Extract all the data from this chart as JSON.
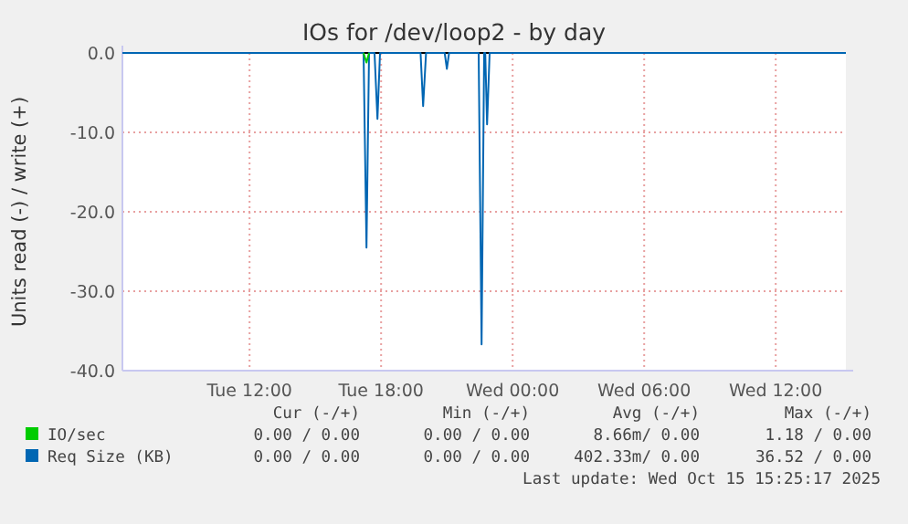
{
  "chart_data": {
    "type": "line",
    "title": "IOs for /dev/loop2 - by day",
    "ylabel": "Units read (-) / write (+)",
    "x": [
      "2025-10-14T06:12",
      "2025-10-14T17:12",
      "2025-10-14T17:20",
      "2025-10-14T17:27",
      "2025-10-14T17:42",
      "2025-10-14T17:50",
      "2025-10-14T17:57",
      "2025-10-14T19:48",
      "2025-10-14T19:55",
      "2025-10-14T20:03",
      "2025-10-14T20:54",
      "2025-10-14T21:00",
      "2025-10-14T21:06",
      "2025-10-14T22:27",
      "2025-10-14T22:35",
      "2025-10-14T22:42",
      "2025-10-14T22:45",
      "2025-10-14T22:50",
      "2025-10-14T22:57",
      "2025-10-15T15:12"
    ],
    "series": [
      {
        "name": "IO/sec",
        "color": "#00cc00",
        "values": [
          null,
          0,
          -1.2,
          0,
          null,
          null,
          null,
          null,
          null,
          null,
          null,
          null,
          null,
          null,
          null,
          null,
          null,
          null,
          null,
          null
        ]
      },
      {
        "name": "Req Size (KB)",
        "color": "#0066b3",
        "values": [
          0,
          0,
          -24.5,
          0,
          0,
          -8.3,
          0,
          0,
          -6.7,
          0,
          0,
          -2,
          0,
          0,
          -36.7,
          0,
          0,
          -9,
          0,
          0
        ]
      }
    ],
    "xlim": [
      "2025-10-14T06:12",
      "2025-10-15T15:12"
    ],
    "xticks": [
      {
        "value": "2025-10-14T12:00",
        "label": "Tue 12:00"
      },
      {
        "value": "2025-10-14T18:00",
        "label": "Tue 18:00"
      },
      {
        "value": "2025-10-15T00:00",
        "label": "Wed 00:00"
      },
      {
        "value": "2025-10-15T06:00",
        "label": "Wed 06:00"
      },
      {
        "value": "2025-10-15T12:00",
        "label": "Wed 12:00"
      }
    ],
    "ylim": [
      -40,
      0
    ],
    "yticks": [
      {
        "value": 0,
        "label": "0.0"
      },
      {
        "value": -10,
        "label": "-10.0"
      },
      {
        "value": -20,
        "label": "-20.0"
      },
      {
        "value": -30,
        "label": "-30.0"
      },
      {
        "value": -40,
        "label": "-40.0"
      }
    ],
    "grid": true,
    "legend": "bottom",
    "marker": "none",
    "line_style": "solid",
    "annotations": [
      "Cur (-/+)",
      "Min (-/+)",
      "Avg (-/+)",
      "Max (-/+)",
      "0.00 / 0.00",
      "0.00 / 0.00",
      "8.66m/ 0.00",
      "1.18 / 0.00",
      "0.00 / 0.00",
      "0.00 / 0.00",
      "402.33m/ 0.00",
      "36.52 / 0.00",
      "Last update: Wed Oct 15 15:25:17 2025"
    ]
  }
}
